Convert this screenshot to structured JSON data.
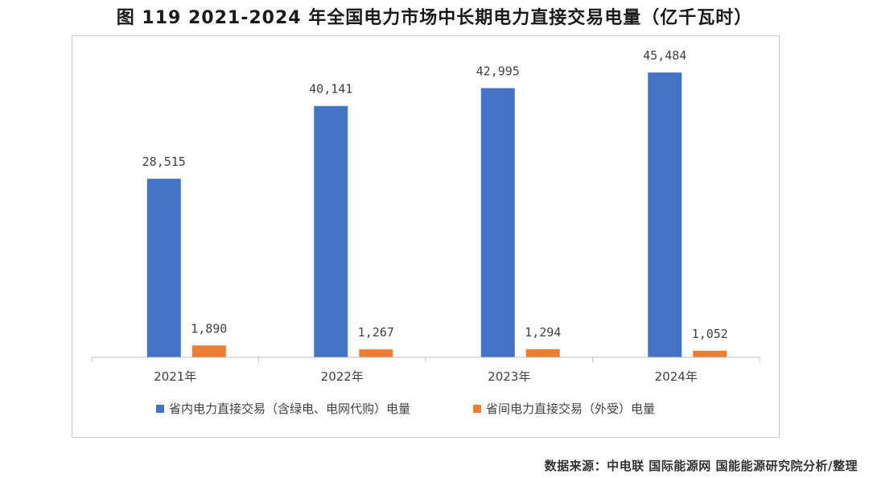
{
  "title": "图 119 2021-2024 年全国电力市场中长期电力直接交易电量（亿千瓦时）",
  "source": "数据来源：中电联 国际能源网 国能能源研究院分析/整理",
  "colors": {
    "series_1": "#4472C4",
    "series_2": "#ED7D31",
    "axis": "#bfbfbf",
    "frame": "#c8c8c8"
  },
  "chart_data": {
    "type": "bar",
    "categories": [
      "2021年",
      "2022年",
      "2023年",
      "2024年"
    ],
    "series": [
      {
        "name": "省内电力直接交易（含绿电、电网代购）电量",
        "values": [
          28515,
          40141,
          42995,
          45484
        ],
        "labels": [
          "28,515",
          "40,141",
          "42,995",
          "45,484"
        ]
      },
      {
        "name": "省间电力直接交易（外受）电量",
        "values": [
          1890,
          1267,
          1294,
          1052
        ],
        "labels": [
          "1,890",
          "1,267",
          "1,294",
          "1,052"
        ]
      }
    ],
    "ylim": [
      0,
      50000
    ],
    "grid": false,
    "legend": "bottom"
  }
}
